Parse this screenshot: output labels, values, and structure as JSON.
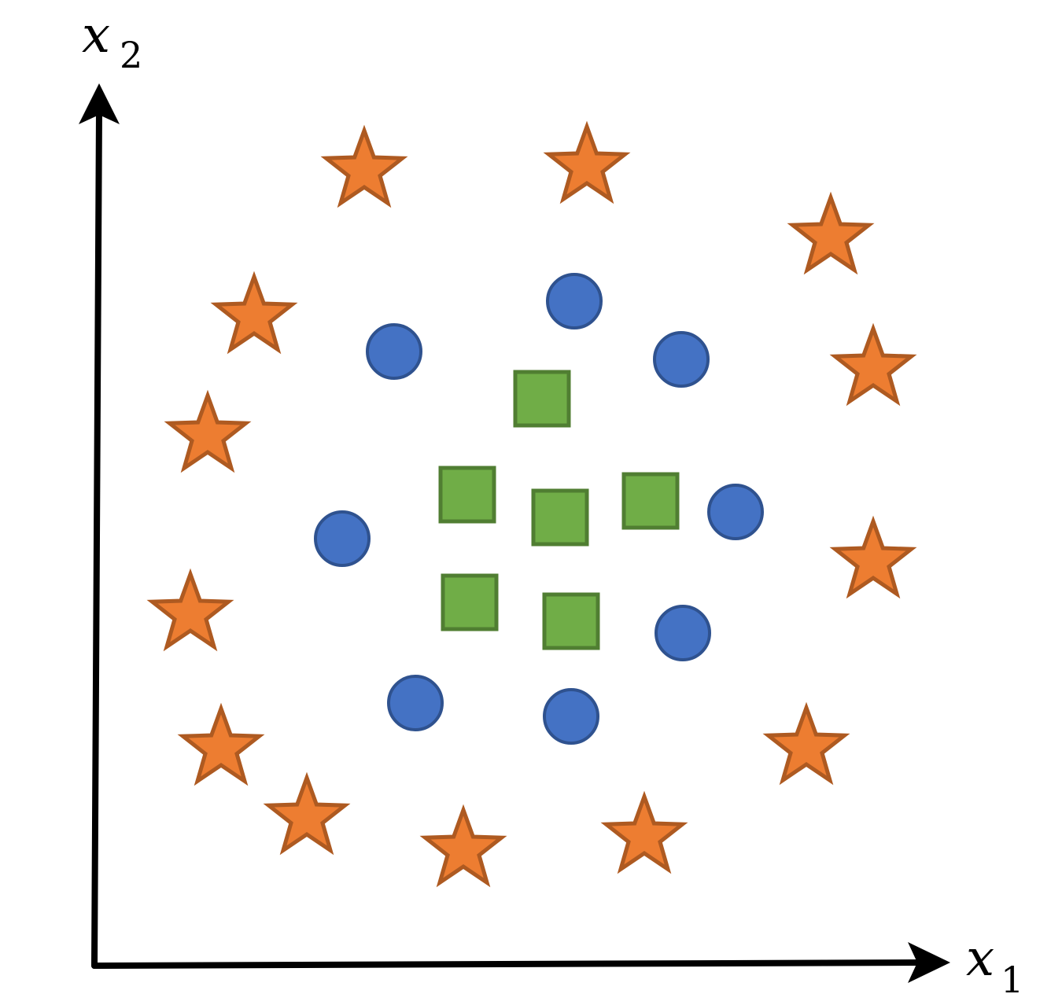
{
  "diagram": {
    "x_axis_label": {
      "base": "x",
      "subscript": "1"
    },
    "y_axis_label": {
      "base": "x",
      "subscript": "2"
    },
    "colors": {
      "star_fill": "#ed7d31",
      "star_stroke": "#ae5a21",
      "circle_fill": "#4472c4",
      "circle_stroke": "#2f528f",
      "square_fill": "#70ad47",
      "square_stroke": "#507e32"
    }
  }
}
